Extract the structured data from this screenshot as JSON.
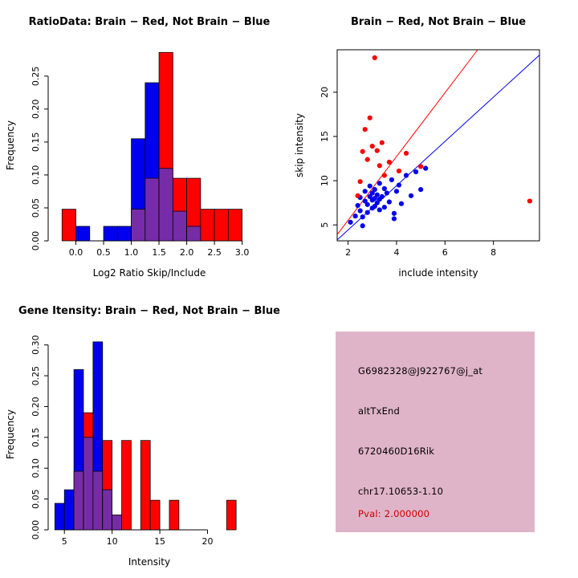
{
  "colors": {
    "red": "#FF0000",
    "blue": "#0000EE",
    "overlap": "#762CA7",
    "axis": "#000000",
    "info_bg": "#E0B4C8",
    "pval": "#CC0000"
  },
  "chart_data": [
    {
      "id": "ratio-hist",
      "type": "bar",
      "title": "RatioData: Brain − Red, Not Brain − Blue",
      "xlabel": "Log2 Ratio Skip/Include",
      "ylabel": "Frequency",
      "xlim": [
        -0.5,
        3.15
      ],
      "ylim": [
        0,
        0.29
      ],
      "xticks": [
        0.0,
        0.5,
        1.0,
        1.5,
        2.0,
        2.5,
        3.0
      ],
      "xtick_labels": [
        "0.0",
        "0.5",
        "1.0",
        "1.5",
        "2.0",
        "2.5",
        "3.0"
      ],
      "yticks": [
        0.0,
        0.05,
        0.1,
        0.15,
        0.2,
        0.25
      ],
      "ytick_labels": [
        "0.00",
        "0.05",
        "0.10",
        "0.15",
        "0.20",
        "0.25"
      ],
      "bin_width": 0.25,
      "legend": {
        "red": "Brain",
        "blue": "Not Brain"
      },
      "bins": [
        {
          "x0": -0.25,
          "red": 0.048,
          "blue": 0
        },
        {
          "x0": 0.0,
          "red": 0,
          "blue": 0.022
        },
        {
          "x0": 0.5,
          "red": 0,
          "blue": 0.022
        },
        {
          "x0": 0.75,
          "red": 0,
          "blue": 0.022
        },
        {
          "x0": 1.0,
          "red": 0.048,
          "blue": 0.155
        },
        {
          "x0": 1.25,
          "red": 0.095,
          "blue": 0.24
        },
        {
          "x0": 1.5,
          "red": 0.286,
          "blue": 0.11
        },
        {
          "x0": 1.75,
          "red": 0.095,
          "blue": 0.045
        },
        {
          "x0": 2.0,
          "red": 0.095,
          "blue": 0.022
        },
        {
          "x0": 2.25,
          "red": 0.048,
          "blue": 0
        },
        {
          "x0": 2.5,
          "red": 0.048,
          "blue": 0
        },
        {
          "x0": 2.75,
          "red": 0.048,
          "blue": 0
        }
      ]
    },
    {
      "id": "intensity-scatter",
      "type": "scatter",
      "title": "Brain − Red, Not Brain − Blue",
      "xlabel": "include intensity",
      "ylabel": "skip intensity",
      "xlim": [
        1.55,
        9.9
      ],
      "ylim": [
        3.2,
        24.8
      ],
      "xticks": [
        2,
        4,
        6,
        8
      ],
      "xtick_labels": [
        "2",
        "4",
        "6",
        "8"
      ],
      "yticks": [
        5,
        10,
        15,
        20
      ],
      "ytick_labels": [
        "5",
        "10",
        "15",
        "20"
      ],
      "lines": [
        {
          "color": "red",
          "x": [
            1.55,
            7.35
          ],
          "y": [
            3.9,
            24.8
          ]
        },
        {
          "color": "blue",
          "x": [
            1.55,
            9.9
          ],
          "y": [
            3.3,
            24.2
          ]
        }
      ],
      "series": [
        {
          "name": "not-brain",
          "color": "blue",
          "points": [
            [
              2.1,
              5.3
            ],
            [
              2.3,
              6.0
            ],
            [
              2.4,
              7.2
            ],
            [
              2.5,
              6.6
            ],
            [
              2.5,
              8.1
            ],
            [
              2.6,
              5.9
            ],
            [
              2.6,
              4.9
            ],
            [
              2.7,
              7.7
            ],
            [
              2.7,
              8.8
            ],
            [
              2.8,
              6.4
            ],
            [
              2.8,
              7.3
            ],
            [
              2.9,
              8.2
            ],
            [
              2.9,
              9.4
            ],
            [
              3.0,
              6.9
            ],
            [
              3.0,
              7.8
            ],
            [
              3.0,
              8.6
            ],
            [
              3.1,
              7.1
            ],
            [
              3.1,
              8.0
            ],
            [
              3.1,
              9.0
            ],
            [
              3.2,
              7.5
            ],
            [
              3.2,
              8.4
            ],
            [
              3.3,
              6.7
            ],
            [
              3.3,
              7.9
            ],
            [
              3.3,
              9.7
            ],
            [
              3.4,
              8.2
            ],
            [
              3.5,
              7.0
            ],
            [
              3.5,
              9.1
            ],
            [
              3.6,
              8.6
            ],
            [
              3.7,
              7.6
            ],
            [
              3.8,
              10.1
            ],
            [
              3.9,
              6.3
            ],
            [
              3.9,
              5.7
            ],
            [
              4.0,
              8.8
            ],
            [
              4.1,
              9.5
            ],
            [
              4.2,
              7.4
            ],
            [
              4.4,
              10.6
            ],
            [
              4.6,
              8.3
            ],
            [
              4.8,
              11.0
            ],
            [
              5.0,
              9.0
            ],
            [
              5.2,
              11.4
            ]
          ]
        },
        {
          "name": "brain",
          "color": "red",
          "points": [
            [
              2.4,
              8.3
            ],
            [
              2.5,
              9.9
            ],
            [
              2.6,
              13.3
            ],
            [
              2.7,
              15.8
            ],
            [
              2.8,
              12.4
            ],
            [
              2.9,
              17.1
            ],
            [
              3.0,
              13.9
            ],
            [
              3.1,
              23.9
            ],
            [
              3.2,
              13.4
            ],
            [
              3.3,
              11.7
            ],
            [
              3.4,
              14.3
            ],
            [
              3.5,
              10.6
            ],
            [
              3.7,
              12.1
            ],
            [
              4.1,
              11.1
            ],
            [
              4.4,
              13.1
            ],
            [
              5.0,
              11.6
            ],
            [
              9.5,
              7.7
            ]
          ]
        }
      ]
    },
    {
      "id": "gene-hist",
      "type": "bar",
      "title": "Gene Itensity: Brain − Red, Not Brain − Blue",
      "xlabel": "Intensity",
      "ylabel": "Frequency",
      "xlim": [
        3.3,
        24.5
      ],
      "ylim": [
        0,
        0.31
      ],
      "xticks": [
        5,
        10,
        15,
        20
      ],
      "xtick_labels": [
        "5",
        "10",
        "15",
        "20"
      ],
      "yticks": [
        0.0,
        0.05,
        0.1,
        0.15,
        0.2,
        0.25,
        0.3
      ],
      "ytick_labels": [
        "0.00",
        "0.05",
        "0.10",
        "0.15",
        "0.20",
        "0.25",
        "0.30"
      ],
      "bin_width": 1,
      "legend": {
        "red": "Brain",
        "blue": "Not Brain"
      },
      "bins": [
        {
          "x0": 4,
          "red": 0,
          "blue": 0.043
        },
        {
          "x0": 5,
          "red": 0,
          "blue": 0.065
        },
        {
          "x0": 6,
          "red": 0.095,
          "blue": 0.26
        },
        {
          "x0": 7,
          "red": 0.19,
          "blue": 0.15
        },
        {
          "x0": 8,
          "red": 0.095,
          "blue": 0.305
        },
        {
          "x0": 9,
          "red": 0.145,
          "blue": 0.065
        },
        {
          "x0": 10,
          "red": 0.024,
          "blue": 0.024
        },
        {
          "x0": 11,
          "red": 0.145,
          "blue": 0
        },
        {
          "x0": 13,
          "red": 0.145,
          "blue": 0
        },
        {
          "x0": 14,
          "red": 0.048,
          "blue": 0
        },
        {
          "x0": 16,
          "red": 0.048,
          "blue": 0
        },
        {
          "x0": 22,
          "red": 0.048,
          "blue": 0
        }
      ]
    }
  ],
  "info_panel": {
    "lines": [
      "G6982328@J922767@j_at",
      "altTxEnd",
      "6720460D16Rik",
      "chr17.10653-1.10"
    ],
    "pval": "Pval: 2.000000"
  }
}
